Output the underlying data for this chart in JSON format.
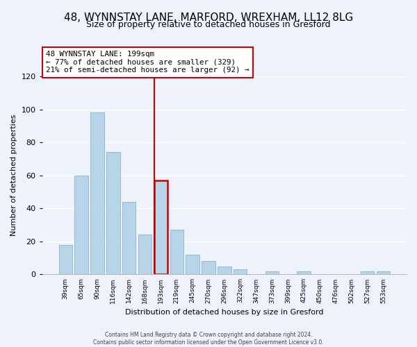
{
  "title": "48, WYNNSTAY LANE, MARFORD, WREXHAM, LL12 8LG",
  "subtitle": "Size of property relative to detached houses in Gresford",
  "xlabel": "Distribution of detached houses by size in Gresford",
  "ylabel": "Number of detached properties",
  "categories": [
    "39sqm",
    "65sqm",
    "90sqm",
    "116sqm",
    "142sqm",
    "168sqm",
    "193sqm",
    "219sqm",
    "245sqm",
    "270sqm",
    "296sqm",
    "322sqm",
    "347sqm",
    "373sqm",
    "399sqm",
    "425sqm",
    "450sqm",
    "476sqm",
    "502sqm",
    "527sqm",
    "553sqm"
  ],
  "values": [
    18,
    60,
    98,
    74,
    44,
    24,
    57,
    27,
    12,
    8,
    5,
    3,
    0,
    2,
    0,
    2,
    0,
    0,
    0,
    2,
    2
  ],
  "bar_color": "#b8d4e8",
  "bar_edge_color": "#8ab4cc",
  "highlight_bar_index": 6,
  "highlight_edge_color": "#cc0000",
  "vline_color": "#cc0000",
  "annotation_title": "48 WYNNSTAY LANE: 199sqm",
  "annotation_line1": "← 77% of detached houses are smaller (329)",
  "annotation_line2": "21% of semi-detached houses are larger (92) →",
  "annotation_box_edge": "#cc0000",
  "ylim": [
    0,
    120
  ],
  "yticks": [
    0,
    20,
    40,
    60,
    80,
    100,
    120
  ],
  "footer1": "Contains HM Land Registry data © Crown copyright and database right 2024.",
  "footer2": "Contains public sector information licensed under the Open Government Licence v3.0.",
  "background_color": "#eef2fb",
  "plot_background": "#eef2fb",
  "grid_color": "#ffffff",
  "title_fontsize": 11,
  "subtitle_fontsize": 9,
  "xlabel_fontsize": 8,
  "ylabel_fontsize": 8
}
